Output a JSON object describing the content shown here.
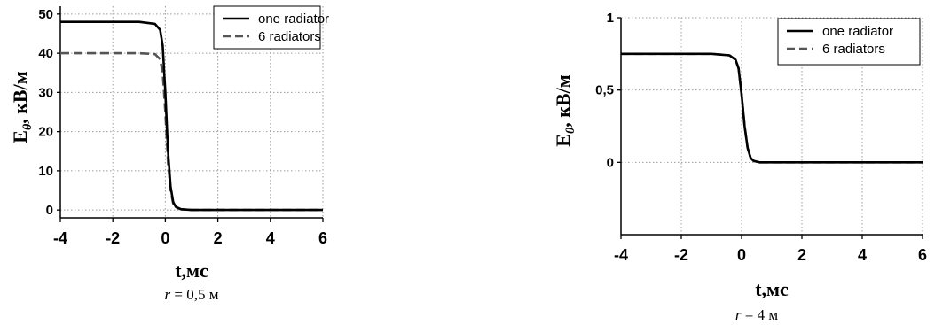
{
  "chart_data": [
    {
      "type": "line",
      "caption": "r = 0,5 м",
      "xlabel": "t,мс",
      "ylabel": "Eθ, кВ/м",
      "xlim": [
        -4,
        6
      ],
      "ylim": [
        -2,
        52
      ],
      "xticks": [
        "-4",
        "-2",
        "0",
        "2",
        "4",
        "6"
      ],
      "yticks": [
        "0",
        "10",
        "20",
        "30",
        "40",
        "50"
      ],
      "grid": true,
      "legend_position": "top-right",
      "series": [
        {
          "name": "one radiator",
          "style": "solid",
          "x": [
            -4,
            -1,
            -0.4,
            -0.2,
            -0.1,
            0,
            0.1,
            0.2,
            0.3,
            0.4,
            0.6,
            1,
            6
          ],
          "y": [
            48,
            48,
            47.5,
            46,
            42,
            30,
            15,
            6,
            2,
            0.8,
            0.2,
            0,
            0
          ]
        },
        {
          "name": "6 radiators",
          "style": "dashed",
          "x": [
            -4,
            -1,
            -0.4,
            -0.2,
            -0.1,
            0,
            0.1,
            0.2,
            0.3,
            0.4,
            0.6,
            1,
            6
          ],
          "y": [
            40,
            40,
            39.8,
            38.5,
            35,
            25,
            12,
            5,
            1.6,
            0.6,
            0.2,
            0,
            0
          ]
        }
      ]
    },
    {
      "type": "line",
      "caption": "r = 4 м",
      "xlabel": "t,мс",
      "ylabel": "Eθ, кВ/м",
      "xlim": [
        -4,
        6
      ],
      "ylim": [
        -0.5,
        1
      ],
      "xticks": [
        "-4",
        "-2",
        "0",
        "2",
        "4",
        "6"
      ],
      "yticks": [
        "0",
        "0,5",
        "1"
      ],
      "grid": true,
      "legend_position": "top-right",
      "series": [
        {
          "name": "one radiator",
          "style": "solid",
          "x": [
            -4,
            -1,
            -0.4,
            -0.2,
            -0.1,
            0,
            0.1,
            0.2,
            0.3,
            0.4,
            0.6,
            1,
            6
          ],
          "y": [
            0.75,
            0.75,
            0.74,
            0.71,
            0.65,
            0.47,
            0.25,
            0.1,
            0.03,
            0.01,
            0,
            0,
            0
          ]
        },
        {
          "name": "6 radiators",
          "style": "dashed",
          "x": [
            -4,
            -1,
            -0.4,
            -0.2,
            -0.1,
            0,
            0.1,
            0.2,
            0.3,
            0.4,
            0.6,
            1,
            6
          ],
          "y": [
            0.75,
            0.75,
            0.74,
            0.71,
            0.65,
            0.47,
            0.25,
            0.1,
            0.03,
            0.01,
            0,
            0,
            0
          ]
        }
      ]
    }
  ]
}
